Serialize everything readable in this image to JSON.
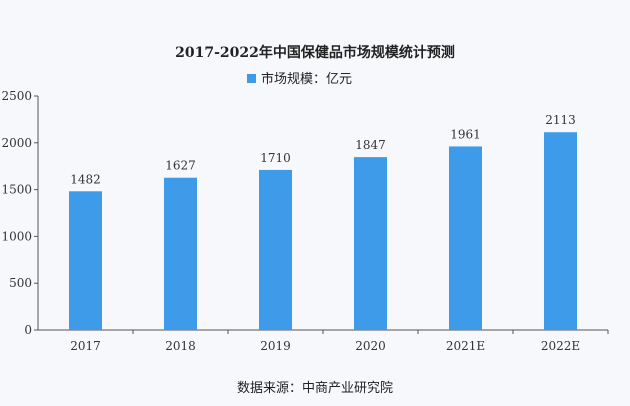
{
  "chart_data": {
    "type": "bar",
    "title": "2017-2022年中国保健品市场规模统计预测",
    "legend": "市场规模：亿元",
    "legend_placement": "top-center",
    "categories": [
      "2017",
      "2018",
      "2019",
      "2020",
      "2021E",
      "2022E"
    ],
    "series": [
      {
        "name": "市场规模：亿元",
        "values": [
          1482,
          1627,
          1710,
          1847,
          1961,
          2113
        ]
      }
    ],
    "yticks": [
      0,
      500,
      1000,
      1500,
      2000,
      2500
    ],
    "ylim": [
      0,
      2500
    ],
    "xlabel": "",
    "ylabel": "",
    "grid": false,
    "bar_color": "#3d9bea",
    "source": "数据来源：中商产业研究院"
  }
}
